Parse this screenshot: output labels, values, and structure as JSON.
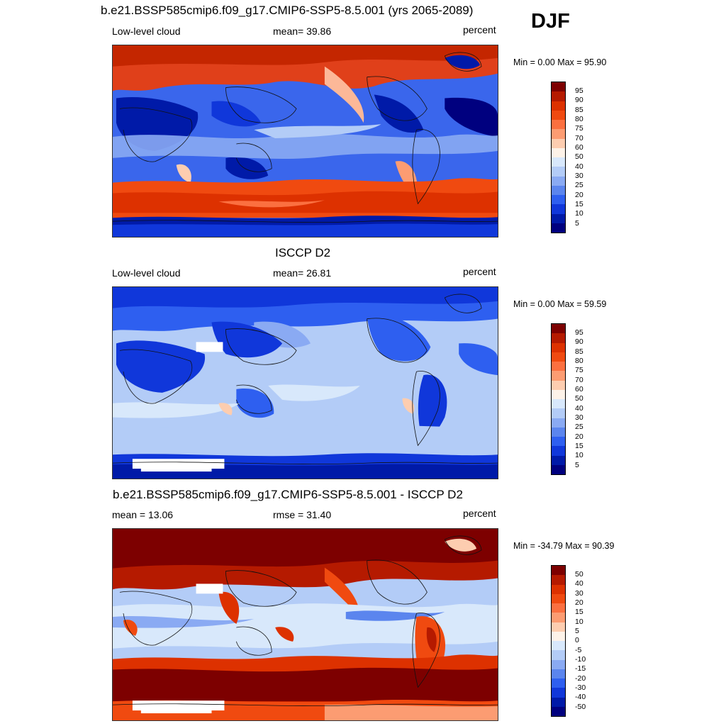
{
  "season": "DJF",
  "panels": [
    {
      "title": "b.e21.BSSP585cmip6.f09_g17.CMIP6-SSP5-8.5.001 (yrs 2065-2089)",
      "left_label": "Low-level cloud",
      "center_label": "mean=  39.86",
      "right_label": "percent",
      "minmax": "Min =   0.00 Max =  95.90",
      "colorbar": {
        "labels": [
          "95",
          "90",
          "85",
          "80",
          "75",
          "70",
          "60",
          "50",
          "40",
          "30",
          "25",
          "20",
          "15",
          "10",
          "5"
        ],
        "colors": [
          "#7d0000",
          "#b51a00",
          "#dd3100",
          "#f04a10",
          "#fb7040",
          "#fc9c72",
          "#fdcdb0",
          "#fdf2e8",
          "#d8e8fb",
          "#b3ccf7",
          "#8aaaf3",
          "#5b85ee",
          "#2e5ff0",
          "#1037da",
          "#001aa8",
          "#00007f"
        ]
      }
    },
    {
      "title": "ISCCP D2",
      "left_label": "Low-level cloud",
      "center_label": "mean=  26.81",
      "right_label": "percent",
      "minmax": "Min =   0.00 Max =  59.59",
      "colorbar": {
        "labels": [
          "95",
          "90",
          "85",
          "80",
          "75",
          "70",
          "60",
          "50",
          "40",
          "30",
          "25",
          "20",
          "15",
          "10",
          "5"
        ],
        "colors": [
          "#7d0000",
          "#b51a00",
          "#dd3100",
          "#f04a10",
          "#fb7040",
          "#fc9c72",
          "#fdcdb0",
          "#fdf2e8",
          "#d8e8fb",
          "#b3ccf7",
          "#8aaaf3",
          "#5b85ee",
          "#2e5ff0",
          "#1037da",
          "#001aa8",
          "#00007f"
        ]
      }
    },
    {
      "title": "b.e21.BSSP585cmip6.f09_g17.CMIP6-SSP5-8.5.001 - ISCCP D2",
      "left_label": "mean =  13.06",
      "center_label": "rmse =  31.40",
      "right_label": "percent",
      "minmax": "Min = -34.79 Max =  90.39",
      "colorbar": {
        "labels": [
          "50",
          "40",
          "30",
          "20",
          "15",
          "10",
          "5",
          "0",
          "-5",
          "-10",
          "-15",
          "-20",
          "-30",
          "-40",
          "-50"
        ],
        "colors": [
          "#7d0000",
          "#b51a00",
          "#dd3100",
          "#f04a10",
          "#fb7040",
          "#fc9c72",
          "#fdcdb0",
          "#fdf2e8",
          "#d8e8fb",
          "#b3ccf7",
          "#8aaaf3",
          "#5b85ee",
          "#2e5ff0",
          "#1037da",
          "#001aa8",
          "#00007f"
        ]
      }
    }
  ]
}
